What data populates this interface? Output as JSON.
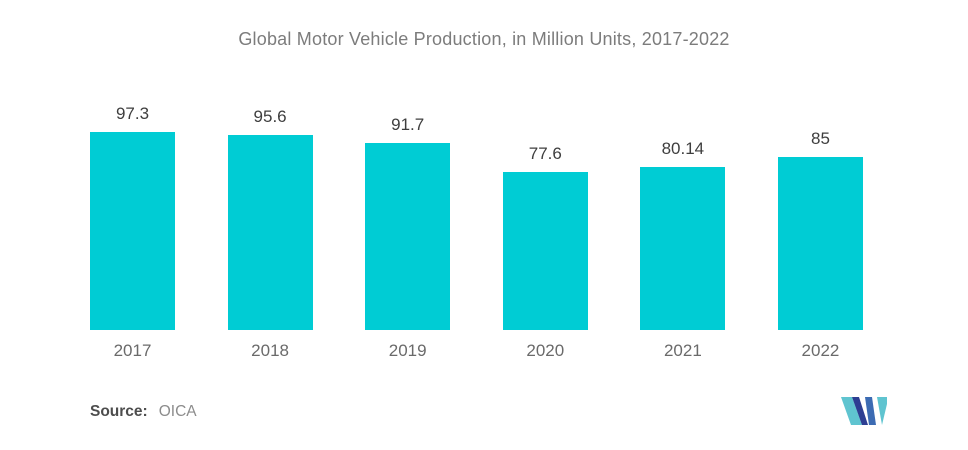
{
  "chart_data": {
    "type": "bar",
    "title": "Global Motor Vehicle Production, in Million Units, 2017-2022",
    "categories": [
      "2017",
      "2018",
      "2019",
      "2020",
      "2021",
      "2022"
    ],
    "values": [
      97.3,
      95.6,
      91.7,
      77.6,
      80.14,
      85
    ],
    "value_labels": [
      "97.3",
      "95.6",
      "91.7",
      "77.6",
      "80.14",
      "85"
    ],
    "xlabel": "",
    "ylabel": "",
    "ylim": [
      0,
      113
    ],
    "grid": false,
    "legend": false,
    "bar_color": "#00CCD4"
  },
  "footer": {
    "source_label": "Source:",
    "source_value": "OICA"
  },
  "logo": {
    "name": "Mordor Intelligence monogram",
    "colors": {
      "teal": "#5FC4D0",
      "navy": "#2D3E92",
      "blue": "#3C6BB3"
    }
  },
  "colors": {
    "background": "#FFFFFF",
    "title_text": "#7C7C7C",
    "value_label_text": "#3E3E3E",
    "category_label_text": "#6A6A6A",
    "source_label_text": "#4D4D4D",
    "source_value_text": "#8C8C8C"
  }
}
